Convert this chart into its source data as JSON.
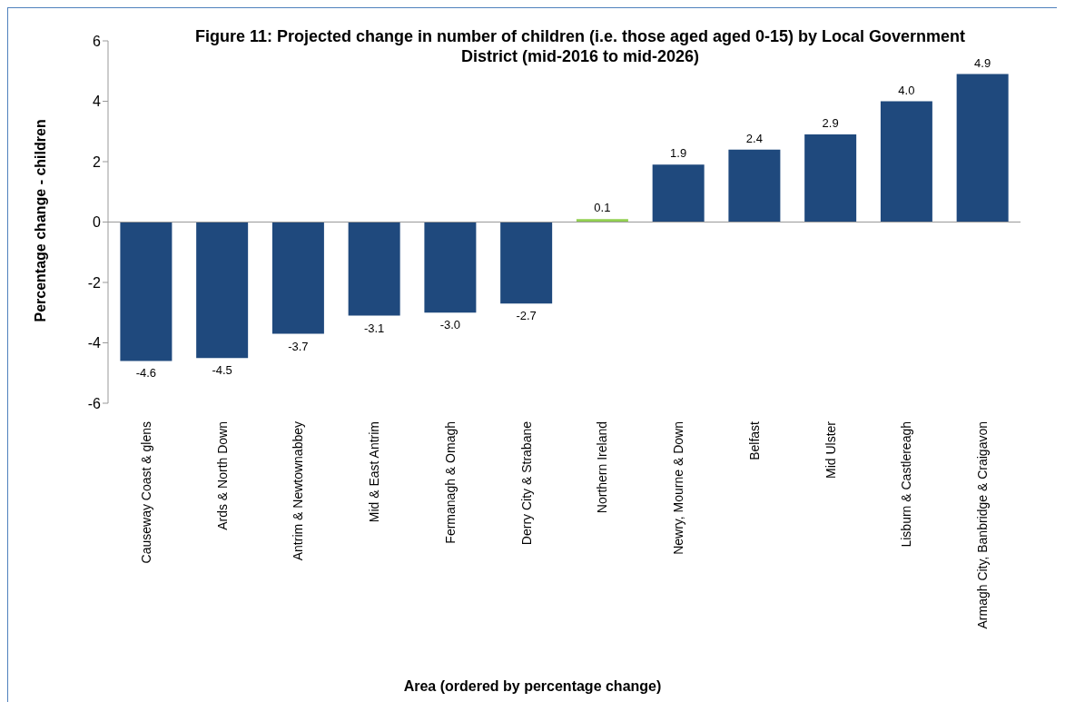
{
  "chart_data": {
    "type": "bar",
    "title": "Figure 11: Projected change in number of children (i.e. those aged aged 0-15) by Local Government District (mid-2016 to mid-2026)",
    "xlabel": "Area (ordered by percentage change)",
    "ylabel": "Percentage change - children",
    "categories": [
      "Causeway Coast & glens",
      "Ards & North Down",
      "Antrim & Newtownabbey",
      "Mid & East Antrim",
      "Fermanagh & Omagh",
      "Derry City & Strabane",
      "Northern Ireland",
      "Newry, Mourne & Down",
      "Belfast",
      "Mid Ulster",
      "Lisburn & Castlereagh",
      "Armagh City, Banbridge & Craigavon"
    ],
    "values": [
      -4.6,
      -4.5,
      -3.7,
      -3.1,
      -3.0,
      -2.7,
      0.1,
      1.9,
      2.4,
      2.9,
      4.0,
      4.9
    ],
    "value_labels": [
      "-4.6",
      "-4.5",
      "-3.7",
      "-3.1",
      "-3.0",
      "-2.7",
      "0.1",
      "1.9",
      "2.4",
      "2.9",
      "4.0",
      "4.9"
    ],
    "colors": [
      "#1f497d",
      "#1f497d",
      "#1f497d",
      "#1f497d",
      "#1f497d",
      "#1f497d",
      "#92d050",
      "#1f497d",
      "#1f497d",
      "#1f497d",
      "#1f497d",
      "#1f497d"
    ],
    "ylim": [
      -6,
      6
    ],
    "yticks": [
      -6,
      -4,
      -2,
      0,
      2,
      4,
      6
    ]
  }
}
